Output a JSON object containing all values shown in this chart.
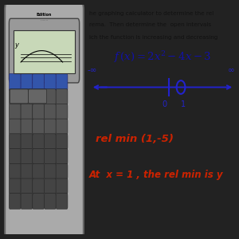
{
  "bg_color": "#f0f0c8",
  "dark_bg": "#222222",
  "calc_body_color": "#aaaaaa",
  "calc_border_color": "#666666",
  "screen_color": "#c8d8b8",
  "screen_border": "#333333",
  "blue_btn_color": "#3355aa",
  "dark_btn_color": "#555555",
  "darker_btn_color": "#444444",
  "title_text_lines": [
    "he graphing calculator to determine the rel",
    "rema.  Then determine the  open intervals",
    "ich the function is increasing and decreasing"
  ],
  "neg_inf_label": "-∞",
  "pos_inf_label": "∞",
  "tick_label_0": "0",
  "tick_label_1": "1",
  "rel_min_text": "rel min (1,-5)",
  "bottom_text": "At  x = 1 , the rel min is y",
  "red_color": "#cc2200",
  "blue_color": "#2222cc",
  "dark_blue": "#1111aa",
  "text_color": "#111111"
}
